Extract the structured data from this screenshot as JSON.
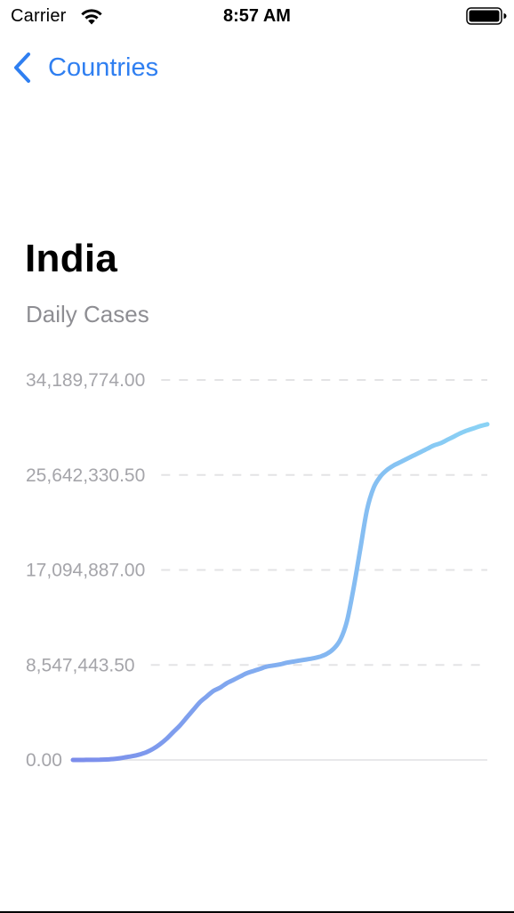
{
  "status_bar": {
    "carrier": "Carrier",
    "time": "8:57 AM",
    "icons": [
      "wifi-icon",
      "battery-icon"
    ]
  },
  "nav": {
    "back_label": "Countries",
    "back_icon": "chevron-left-icon",
    "accent_color": "#2F7FF1"
  },
  "header": {
    "title": "India",
    "subtitle": "Daily Cases"
  },
  "chart_data": {
    "type": "line",
    "title": "",
    "xlabel": "",
    "ylabel": "",
    "ylim": [
      0,
      34189774
    ],
    "y_ticks": [
      "0.00",
      "8,547,443.50",
      "17,094,887.00",
      "25,642,330.50",
      "34,189,774.00"
    ],
    "grid": "horizontal dashed",
    "gradient_colors": [
      "#7B8CEB",
      "#8AD3F5"
    ],
    "series": [
      {
        "values": [
          0,
          2000,
          5000,
          10000,
          20000,
          40000,
          80000,
          150000,
          250000,
          350000,
          500000,
          700000,
          1000000,
          1400000,
          1900000,
          2500000,
          3100000,
          3800000,
          4500000,
          5200000,
          5700000,
          6200000,
          6500000,
          6900000,
          7200000,
          7500000,
          7800000,
          8000000,
          8200000,
          8400000,
          8500000,
          8600000,
          8750000,
          8850000,
          8950000,
          9050000,
          9150000,
          9300000,
          9550000,
          10000000,
          10800000,
          12500000,
          15500000,
          19000000,
          22500000,
          24500000,
          25500000,
          26100000,
          26500000,
          26800000,
          27100000,
          27400000,
          27700000,
          28000000,
          28300000,
          28500000,
          28800000,
          29100000,
          29400000,
          29650000,
          29850000,
          30050000,
          30200000
        ]
      }
    ]
  }
}
